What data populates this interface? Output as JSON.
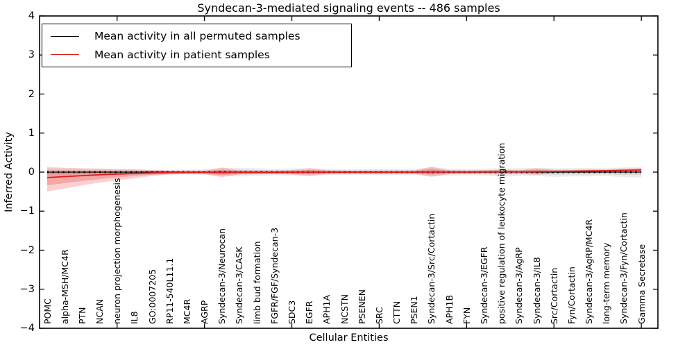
{
  "title": "Syndecan-3-mediated signaling events -- 486 samples",
  "axes": {
    "xlabel": "Cellular Entities",
    "ylabel": "Inferred Activity",
    "ytick_labels": [
      "4",
      "3",
      "2",
      "1",
      "0",
      "−1",
      "−2",
      "−3",
      "−4"
    ],
    "ytick_values": [
      4,
      3,
      2,
      1,
      0,
      -1,
      -2,
      -3,
      -4
    ],
    "ylim": [
      -4,
      4
    ]
  },
  "chart_data": {
    "type": "line",
    "title": "Syndecan-3-mediated signaling events -- 486 samples",
    "xlabel": "Cellular Entities",
    "ylabel": "Inferred Activity",
    "ylim": [
      -4,
      4
    ],
    "grid": false,
    "legend_position": "upper left",
    "categories": [
      "POMC",
      "alpha-MSH/MC4R",
      "PTN",
      "NCAN",
      "neuron projection morphogenesis",
      "IL8",
      "GO:0007205",
      "RP11-540L11.1",
      "MC4R",
      "AGRP",
      "Syndecan-3/Neurocan",
      "Syndecan-3/CASK",
      "limb bud formation",
      "FGFR/FGF/Syndecan-3",
      "SDC3",
      "EGFR",
      "APH1A",
      "NCSTN",
      "PSENEN",
      "SRC",
      "CTTN",
      "PSEN1",
      "Syndecan-3/Src/Cortactin",
      "APH1B",
      "FYN",
      "Syndecan-3/EGFR",
      "positive regulation of leukocyte migration",
      "Syndecan-3/AgRP",
      "Syndecan-3/IL8",
      "Src/Cortactin",
      "Fyn/Cortactin",
      "Syndecan-3/AgRP/MC4R",
      "long-term memory",
      "Syndecan-3/Fyn/Cortactin",
      "Gamma Secretase"
    ],
    "series": [
      {
        "name": "Mean activity in all permuted samples",
        "color": "#000000",
        "band_color": "#aaaaaa",
        "values": [
          0,
          0,
          0,
          0,
          0,
          0,
          0,
          0,
          0,
          0,
          0,
          0,
          0,
          0,
          0,
          0,
          0,
          0,
          0,
          0,
          0,
          0,
          0,
          0,
          0,
          0,
          0,
          0,
          0,
          0,
          0,
          0,
          0,
          0,
          0
        ],
        "band_upper": [
          0.1,
          0.09,
          0.08,
          0.08,
          0.07,
          0.07,
          0.06,
          0.06,
          0.06,
          0.07,
          0.1,
          0.11,
          0.1,
          0.08,
          0.09,
          0.1,
          0.08,
          0.07,
          0.07,
          0.08,
          0.08,
          0.08,
          0.12,
          0.09,
          0.08,
          0.09,
          0.1,
          0.1,
          0.11,
          0.1,
          0.1,
          0.11,
          0.1,
          0.12,
          0.13
        ],
        "band_lower": [
          -0.1,
          -0.09,
          -0.09,
          -0.08,
          -0.08,
          -0.07,
          -0.07,
          -0.06,
          -0.06,
          -0.07,
          -0.1,
          -0.11,
          -0.1,
          -0.08,
          -0.09,
          -0.1,
          -0.08,
          -0.07,
          -0.07,
          -0.08,
          -0.08,
          -0.08,
          -0.11,
          -0.09,
          -0.08,
          -0.09,
          -0.12,
          -0.1,
          -0.1,
          -0.12,
          -0.11,
          -0.11,
          -0.1,
          -0.13,
          -0.14
        ]
      },
      {
        "name": "Mean activity in patient samples",
        "color": "#dd1b1b",
        "band_color": "#ee5555",
        "values": [
          -0.14,
          -0.115,
          -0.09,
          -0.07,
          -0.05,
          -0.035,
          -0.02,
          -0.012,
          -0.008,
          -0.006,
          -0.01,
          -0.006,
          -0.005,
          -0.005,
          -0.004,
          -0.002,
          -0.002,
          -0.002,
          -0.002,
          -0.002,
          -0.002,
          -0.002,
          0.004,
          0,
          0,
          0.004,
          0.008,
          0.008,
          0.012,
          0.018,
          0.022,
          0.028,
          0.035,
          0.045,
          0.055
        ],
        "band_upper": [
          0.13,
          0.11,
          0.1,
          0.09,
          0.08,
          0.07,
          0.05,
          0.04,
          0.04,
          0.04,
          0.12,
          0.05,
          0.04,
          0.04,
          0.05,
          0.1,
          0.05,
          0.04,
          0.04,
          0.04,
          0.04,
          0.04,
          0.14,
          0.05,
          0.04,
          0.05,
          0.07,
          0.05,
          0.1,
          0.06,
          0.06,
          0.07,
          0.07,
          0.09,
          0.1
        ],
        "band_lower": [
          -0.5,
          -0.42,
          -0.34,
          -0.27,
          -0.21,
          -0.16,
          -0.1,
          -0.06,
          -0.05,
          -0.05,
          -0.13,
          -0.06,
          -0.05,
          -0.05,
          -0.06,
          -0.1,
          -0.05,
          -0.04,
          -0.04,
          -0.04,
          -0.04,
          -0.04,
          -0.12,
          -0.05,
          -0.04,
          -0.04,
          -0.05,
          -0.04,
          -0.07,
          -0.03,
          -0.02,
          -0.02,
          -0.01,
          0.0,
          0.01
        ]
      }
    ]
  },
  "legend": {
    "items": [
      {
        "label": "Mean activity in all permuted samples",
        "color": "#000000"
      },
      {
        "label": "Mean activity in patient samples",
        "color": "#dd1b1b"
      }
    ]
  }
}
